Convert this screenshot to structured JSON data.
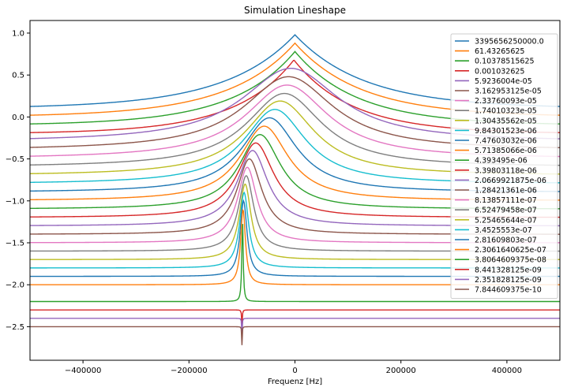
{
  "chart_data": {
    "type": "line",
    "title": "Simulation Lineshape",
    "xlabel": "Frequenz [Hz]",
    "ylabel": "",
    "xlim": [
      -500000,
      500000
    ],
    "ylim": [
      -2.9,
      1.15
    ],
    "xticks": [
      -400000,
      -200000,
      0,
      200000,
      400000
    ],
    "xtick_labels": [
      "−400000",
      "−200000",
      "0",
      "200000",
      "400000"
    ],
    "yticks": [
      1.0,
      0.5,
      0.0,
      -0.5,
      -1.0,
      -1.5,
      -2.0,
      -2.5
    ],
    "ytick_labels": [
      "1.0",
      "0.5",
      "0.0",
      "−0.5",
      "−1.0",
      "−1.5",
      "−2.0",
      "−2.5"
    ],
    "grid": false,
    "legend_position": "right",
    "series": [
      {
        "name": "3395656250000.0",
        "color": "#1f77b4",
        "baseline": 0.1,
        "peak": 0.98,
        "center": 0,
        "width": 190000,
        "shape": "cusp"
      },
      {
        "name": "61.43265625",
        "color": "#ff7f0e",
        "baseline": 0.0,
        "peak": 0.88,
        "center": 0,
        "width": 180000,
        "shape": "cusp"
      },
      {
        "name": "0.10378515625",
        "color": "#2ca02c",
        "baseline": -0.1,
        "peak": 0.78,
        "center": 0,
        "width": 170000,
        "shape": "cusp"
      },
      {
        "name": "0.001032625",
        "color": "#d62728",
        "baseline": -0.2,
        "peak": 0.68,
        "center": -2000,
        "width": 160000,
        "shape": "cusp"
      },
      {
        "name": "5.9236004e-05",
        "color": "#9467bd",
        "baseline": -0.3,
        "peak": 0.58,
        "center": -8000,
        "width": 140000,
        "shape": "round"
      },
      {
        "name": "3.162953125e-05",
        "color": "#8c564b",
        "baseline": -0.4,
        "peak": 0.48,
        "center": -12000,
        "width": 130000,
        "shape": "round"
      },
      {
        "name": "2.33760093e-05",
        "color": "#e377c2",
        "baseline": -0.5,
        "peak": 0.38,
        "center": -15000,
        "width": 120000,
        "shape": "round"
      },
      {
        "name": "1.74010323e-05",
        "color": "#7f7f7f",
        "baseline": -0.6,
        "peak": 0.28,
        "center": -20000,
        "width": 110000,
        "shape": "round"
      },
      {
        "name": "1.30435562e-05",
        "color": "#bcbd22",
        "baseline": -0.7,
        "peak": 0.19,
        "center": -28000,
        "width": 100000,
        "shape": "round"
      },
      {
        "name": "9.84301523e-06",
        "color": "#17becf",
        "baseline": -0.8,
        "peak": 0.09,
        "center": -38000,
        "width": 90000,
        "shape": "round"
      },
      {
        "name": "7.47603032e-06",
        "color": "#1f77b4",
        "baseline": -0.9,
        "peak": -0.01,
        "center": -48000,
        "width": 80000,
        "shape": "round"
      },
      {
        "name": "5.71385066e-06",
        "color": "#ff7f0e",
        "baseline": -1.0,
        "peak": -0.11,
        "center": -58000,
        "width": 70000,
        "shape": "round"
      },
      {
        "name": "4.393495e-06",
        "color": "#2ca02c",
        "baseline": -1.1,
        "peak": -0.21,
        "center": -66000,
        "width": 60000,
        "shape": "round"
      },
      {
        "name": "3.39803118e-06",
        "color": "#d62728",
        "baseline": -1.2,
        "peak": -0.31,
        "center": -74000,
        "width": 52000,
        "shape": "round"
      },
      {
        "name": "2.0669921875e-06",
        "color": "#9467bd",
        "baseline": -1.3,
        "peak": -0.4,
        "center": -80000,
        "width": 44000,
        "shape": "round"
      },
      {
        "name": "1.28421361e-06",
        "color": "#8c564b",
        "baseline": -1.4,
        "peak": -0.5,
        "center": -86000,
        "width": 36000,
        "shape": "round"
      },
      {
        "name": "8.13857111e-07",
        "color": "#e377c2",
        "baseline": -1.5,
        "peak": -0.6,
        "center": -90000,
        "width": 28000,
        "shape": "round"
      },
      {
        "name": "6.52479458e-07",
        "color": "#7f7f7f",
        "baseline": -1.6,
        "peak": -0.7,
        "center": -92000,
        "width": 22000,
        "shape": "round"
      },
      {
        "name": "5.25465644e-07",
        "color": "#bcbd22",
        "baseline": -1.7,
        "peak": -0.8,
        "center": -94000,
        "width": 17000,
        "shape": "round"
      },
      {
        "name": "3.4525553e-07",
        "color": "#17becf",
        "baseline": -1.8,
        "peak": -0.9,
        "center": -96000,
        "width": 13000,
        "shape": "round"
      },
      {
        "name": "2.81609803e-07",
        "color": "#1f77b4",
        "baseline": -1.9,
        "peak": -1.0,
        "center": -97000,
        "width": 10000,
        "shape": "round"
      },
      {
        "name": "2.3061640625e-07",
        "color": "#ff7f0e",
        "baseline": -2.0,
        "peak": -1.1,
        "center": -98000,
        "width": 7000,
        "shape": "round"
      },
      {
        "name": "3.8064609375e-08",
        "color": "#2ca02c",
        "baseline": -2.2,
        "peak": -1.2,
        "center": -99000,
        "width": 3000,
        "shape": "spike"
      },
      {
        "name": "8.441328125e-09",
        "color": "#d62728",
        "baseline": -2.3,
        "peak": -2.48,
        "center": -100000,
        "width": 1500,
        "shape": "dip"
      },
      {
        "name": "2.351828125e-09",
        "color": "#9467bd",
        "baseline": -2.4,
        "peak": -2.6,
        "center": -100000,
        "width": 1200,
        "shape": "dip"
      },
      {
        "name": "7.844609375e-10",
        "color": "#8c564b",
        "baseline": -2.5,
        "peak": -2.72,
        "center": -100000,
        "width": 1000,
        "shape": "dip"
      }
    ]
  }
}
